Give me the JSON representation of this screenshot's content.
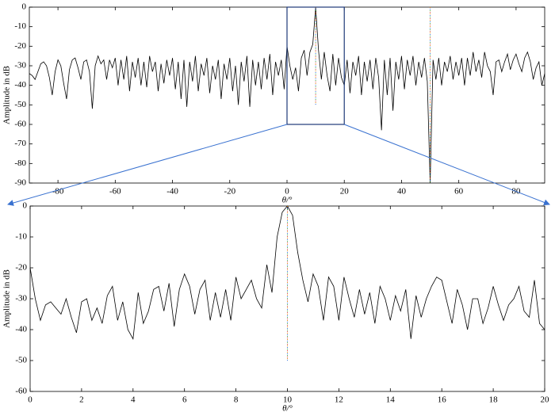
{
  "chart_data": [
    {
      "type": "line",
      "xlabel": "θ/°",
      "ylabel": "Amplitude in dB",
      "color": "#000000",
      "xlim": [
        -90,
        90
      ],
      "xticks": [
        -80,
        -60,
        -40,
        -20,
        0,
        20,
        40,
        60,
        80
      ],
      "ylim": [
        -90,
        0
      ],
      "yticks": [
        -90,
        -80,
        -70,
        -60,
        -50,
        -40,
        -30,
        -20,
        -10,
        0
      ],
      "x": [
        -90,
        -89,
        -88,
        -87,
        -86,
        -85,
        -84,
        -83,
        -82,
        -81,
        -80,
        -79,
        -78,
        -77,
        -76,
        -75,
        -74,
        -73,
        -72,
        -71,
        -70,
        -69,
        -68,
        -67,
        -66,
        -65,
        -64,
        -63,
        -62,
        -61,
        -60,
        -59,
        -58,
        -57,
        -56,
        -55,
        -54,
        -53,
        -52,
        -51,
        -50,
        -49,
        -48,
        -47,
        -46,
        -45,
        -44,
        -43,
        -42,
        -41,
        -40,
        -39,
        -38,
        -37,
        -36,
        -35,
        -34,
        -33,
        -32,
        -31,
        -30,
        -29,
        -28,
        -27,
        -26,
        -25,
        -24,
        -23,
        -22,
        -21,
        -20,
        -19,
        -18,
        -17,
        -16,
        -15,
        -14,
        -13,
        -12,
        -11,
        -10,
        -9,
        -8,
        -7,
        -6,
        -5,
        -4,
        -3,
        -2,
        -1,
        0,
        1,
        2,
        3,
        4,
        5,
        6,
        7,
        8,
        9,
        10,
        11,
        12,
        13,
        14,
        15,
        16,
        17,
        18,
        19,
        20,
        21,
        22,
        23,
        24,
        25,
        26,
        27,
        28,
        29,
        30,
        31,
        32,
        33,
        34,
        35,
        36,
        37,
        38,
        39,
        40,
        41,
        42,
        43,
        44,
        45,
        46,
        47,
        48,
        49,
        50,
        51,
        52,
        53,
        54,
        55,
        56,
        57,
        58,
        59,
        60,
        61,
        62,
        63,
        64,
        65,
        66,
        67,
        68,
        69,
        70,
        71,
        72,
        73,
        74,
        75,
        76,
        77,
        78,
        79,
        80,
        81,
        82,
        83,
        84,
        85,
        86,
        87,
        88,
        89,
        90
      ],
      "values": [
        -34,
        -35,
        -37,
        -33,
        -29,
        -28,
        -30,
        -36,
        -45,
        -33,
        -27,
        -30,
        -39,
        -47,
        -32,
        -27,
        -26,
        -31,
        -37,
        -28,
        -27,
        -33,
        -52,
        -30,
        -25,
        -29,
        -27,
        -37,
        -27,
        -31,
        -26,
        -40,
        -27,
        -37,
        -25,
        -43,
        -28,
        -36,
        -26,
        -40,
        -28,
        -41,
        -25,
        -33,
        -28,
        -43,
        -29,
        -39,
        -27,
        -35,
        -26,
        -42,
        -28,
        -47,
        -27,
        -51,
        -28,
        -38,
        -25,
        -43,
        -29,
        -35,
        -26,
        -44,
        -30,
        -37,
        -27,
        -47,
        -29,
        -37,
        -26,
        -43,
        -30,
        -50,
        -28,
        -38,
        -25,
        -51,
        -27,
        -40,
        -28,
        -42,
        -26,
        -37,
        -24,
        -45,
        -28,
        -35,
        -27,
        -42,
        -20,
        -30,
        -37,
        -31,
        -43,
        -26,
        -22,
        -35,
        -23,
        -19,
        0,
        -22,
        -37,
        -23,
        -35,
        -43,
        -24,
        -40,
        -26,
        -36,
        -40,
        -27,
        -44,
        -28,
        -35,
        -25,
        -45,
        -28,
        -38,
        -27,
        -42,
        -26,
        -36,
        -63,
        -27,
        -45,
        -26,
        -53,
        -28,
        -37,
        -25,
        -42,
        -27,
        -35,
        -25,
        -40,
        -28,
        -36,
        -26,
        -38,
        -90,
        -27,
        -37,
        -26,
        -40,
        -28,
        -33,
        -25,
        -37,
        -28,
        -35,
        -26,
        -40,
        -26,
        -35,
        -23,
        -33,
        -27,
        -36,
        -23,
        -30,
        -33,
        -45,
        -28,
        -27,
        -33,
        -28,
        -24,
        -32,
        -27,
        -24,
        -29,
        -33,
        -26,
        -23,
        -28,
        -37,
        -31,
        -28,
        -40,
        -34
      ],
      "markers": [
        {
          "x": 10,
          "y": [
            0,
            -50
          ]
        },
        {
          "x": 50,
          "y": [
            0,
            -90
          ]
        }
      ]
    },
    {
      "type": "line",
      "xlabel": "θ/°",
      "ylabel": "Amplitude in dB",
      "color": "#000000",
      "xlim": [
        0,
        20
      ],
      "xticks": [
        0,
        2,
        4,
        6,
        8,
        10,
        12,
        14,
        16,
        18,
        20
      ],
      "ylim": [
        -60,
        0
      ],
      "yticks": [
        -60,
        -50,
        -40,
        -30,
        -20,
        -10,
        0
      ],
      "x": [
        0,
        0.2,
        0.4,
        0.6,
        0.8,
        1,
        1.2,
        1.4,
        1.6,
        1.8,
        2,
        2.2,
        2.4,
        2.6,
        2.8,
        3,
        3.2,
        3.4,
        3.6,
        3.8,
        4,
        4.2,
        4.4,
        4.6,
        4.8,
        5,
        5.2,
        5.4,
        5.6,
        5.8,
        6,
        6.2,
        6.4,
        6.6,
        6.8,
        7,
        7.2,
        7.4,
        7.6,
        7.8,
        8,
        8.2,
        8.4,
        8.6,
        8.8,
        9,
        9.2,
        9.4,
        9.6,
        9.8,
        10,
        10.2,
        10.4,
        10.6,
        10.8,
        11,
        11.2,
        11.4,
        11.6,
        11.8,
        12,
        12.2,
        12.4,
        12.6,
        12.8,
        13,
        13.2,
        13.4,
        13.6,
        13.8,
        14,
        14.2,
        14.4,
        14.6,
        14.8,
        15,
        15.2,
        15.4,
        15.6,
        15.8,
        16,
        16.2,
        16.4,
        16.6,
        16.8,
        17,
        17.2,
        17.4,
        17.6,
        17.8,
        18,
        18.2,
        18.4,
        18.6,
        18.8,
        19,
        19.2,
        19.4,
        19.6,
        19.8,
        20
      ],
      "values": [
        -20,
        -30,
        -37,
        -32,
        -31,
        -33,
        -35,
        -30,
        -36,
        -41,
        -31,
        -30,
        -37,
        -33,
        -38,
        -29,
        -26,
        -37,
        -31,
        -40,
        -43,
        -28,
        -38,
        -34,
        -27,
        -26,
        -34,
        -25,
        -39,
        -27,
        -22,
        -26,
        -35,
        -27,
        -24,
        -37,
        -28,
        -36,
        -27,
        -37,
        -23,
        -30,
        -27,
        -24,
        -30,
        -33,
        -19,
        -28,
        -10,
        -2,
        0,
        -3,
        -15,
        -24,
        -31,
        -22,
        -26,
        -37,
        -23,
        -26,
        -37,
        -23,
        -30,
        -36,
        -27,
        -35,
        -28,
        -38,
        -26,
        -30,
        -37,
        -29,
        -34,
        -27,
        -43,
        -29,
        -36,
        -30,
        -26,
        -23,
        -24,
        -31,
        -38,
        -27,
        -32,
        -40,
        -30,
        -30,
        -38,
        -33,
        -26,
        -32,
        -37,
        -32,
        -30,
        -26,
        -34,
        -36,
        -24,
        -38,
        -40
      ],
      "markers": [
        {
          "x": 10,
          "y": [
            0,
            -50
          ]
        }
      ]
    }
  ]
}
